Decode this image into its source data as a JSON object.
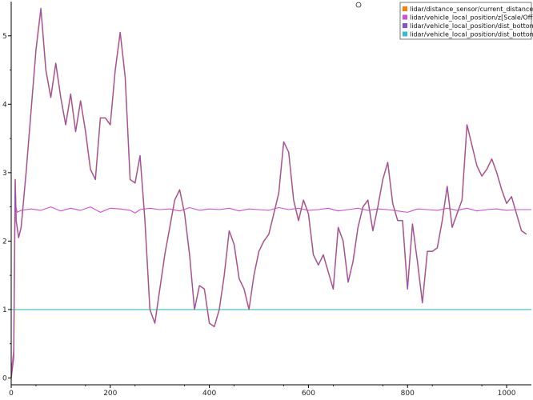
{
  "chart_data": {
    "type": "line",
    "title": "",
    "xlabel": "",
    "ylabel": "",
    "xlim": [
      0,
      1050
    ],
    "ylim": [
      -0.1,
      5.5
    ],
    "x_ticks": [
      0,
      200,
      400,
      600,
      800,
      1000
    ],
    "y_ticks": [
      0,
      1,
      2,
      3,
      4,
      5
    ],
    "grid": false,
    "legend_position": "top-right",
    "series": [
      {
        "name": "lidar/distance_sensor/current_distance",
        "color": "#ff8000",
        "points": [
          [
            0,
            0.0
          ],
          [
            5,
            0.3
          ],
          [
            8,
            2.9
          ],
          [
            10,
            2.3
          ],
          [
            15,
            2.05
          ],
          [
            20,
            2.2
          ],
          [
            30,
            3.0
          ],
          [
            40,
            3.9
          ],
          [
            50,
            4.8
          ],
          [
            60,
            5.4
          ],
          [
            70,
            4.5
          ],
          [
            80,
            4.1
          ],
          [
            90,
            4.6
          ],
          [
            100,
            4.1
          ],
          [
            110,
            3.7
          ],
          [
            120,
            4.15
          ],
          [
            130,
            3.6
          ],
          [
            140,
            4.05
          ],
          [
            150,
            3.6
          ],
          [
            160,
            3.05
          ],
          [
            170,
            2.9
          ],
          [
            180,
            3.8
          ],
          [
            190,
            3.8
          ],
          [
            200,
            3.7
          ],
          [
            210,
            4.5
          ],
          [
            220,
            5.05
          ],
          [
            230,
            4.4
          ],
          [
            240,
            2.9
          ],
          [
            250,
            2.85
          ],
          [
            260,
            3.25
          ],
          [
            270,
            2.3
          ],
          [
            280,
            1.0
          ],
          [
            290,
            0.8
          ],
          [
            300,
            1.3
          ],
          [
            310,
            1.8
          ],
          [
            320,
            2.2
          ],
          [
            330,
            2.6
          ],
          [
            340,
            2.75
          ],
          [
            350,
            2.4
          ],
          [
            360,
            1.8
          ],
          [
            370,
            1.0
          ],
          [
            380,
            1.35
          ],
          [
            390,
            1.3
          ],
          [
            400,
            0.8
          ],
          [
            410,
            0.75
          ],
          [
            420,
            1.0
          ],
          [
            430,
            1.5
          ],
          [
            440,
            2.15
          ],
          [
            450,
            1.95
          ],
          [
            460,
            1.45
          ],
          [
            470,
            1.3
          ],
          [
            480,
            1.0
          ],
          [
            490,
            1.5
          ],
          [
            500,
            1.85
          ],
          [
            510,
            2.0
          ],
          [
            520,
            2.1
          ],
          [
            530,
            2.4
          ],
          [
            540,
            2.7
          ],
          [
            550,
            3.45
          ],
          [
            560,
            3.3
          ],
          [
            570,
            2.6
          ],
          [
            580,
            2.3
          ],
          [
            590,
            2.6
          ],
          [
            600,
            2.4
          ],
          [
            610,
            1.8
          ],
          [
            620,
            1.65
          ],
          [
            630,
            1.8
          ],
          [
            640,
            1.55
          ],
          [
            650,
            1.3
          ],
          [
            660,
            2.2
          ],
          [
            670,
            2.0
          ],
          [
            680,
            1.4
          ],
          [
            690,
            1.7
          ],
          [
            700,
            2.2
          ],
          [
            710,
            2.5
          ],
          [
            720,
            2.6
          ],
          [
            730,
            2.15
          ],
          [
            740,
            2.5
          ],
          [
            750,
            2.9
          ],
          [
            760,
            3.15
          ],
          [
            770,
            2.55
          ],
          [
            780,
            2.3
          ],
          [
            790,
            2.3
          ],
          [
            800,
            1.3
          ],
          [
            810,
            2.25
          ],
          [
            820,
            1.7
          ],
          [
            830,
            1.1
          ],
          [
            840,
            1.85
          ],
          [
            850,
            1.85
          ],
          [
            860,
            1.9
          ],
          [
            870,
            2.3
          ],
          [
            880,
            2.8
          ],
          [
            890,
            2.2
          ],
          [
            900,
            2.4
          ],
          [
            910,
            2.6
          ],
          [
            920,
            3.7
          ],
          [
            930,
            3.4
          ],
          [
            940,
            3.1
          ],
          [
            950,
            2.95
          ],
          [
            960,
            3.05
          ],
          [
            970,
            3.2
          ],
          [
            980,
            3.0
          ],
          [
            990,
            2.75
          ],
          [
            1000,
            2.55
          ],
          [
            1010,
            2.65
          ],
          [
            1020,
            2.4
          ],
          [
            1030,
            2.15
          ],
          [
            1040,
            2.1
          ]
        ]
      },
      {
        "name": "lidar/vehicle_local_position/z[Scale/Offset]",
        "color": "#d14fd1",
        "points": [
          [
            0,
            0.1
          ],
          [
            5,
            0.4
          ],
          [
            8,
            2.55
          ],
          [
            12,
            2.42
          ],
          [
            20,
            2.45
          ],
          [
            40,
            2.47
          ],
          [
            60,
            2.45
          ],
          [
            80,
            2.5
          ],
          [
            100,
            2.44
          ],
          [
            120,
            2.48
          ],
          [
            140,
            2.45
          ],
          [
            160,
            2.5
          ],
          [
            180,
            2.42
          ],
          [
            200,
            2.48
          ],
          [
            220,
            2.47
          ],
          [
            240,
            2.45
          ],
          [
            250,
            2.41
          ],
          [
            260,
            2.46
          ],
          [
            280,
            2.48
          ],
          [
            300,
            2.46
          ],
          [
            320,
            2.47
          ],
          [
            340,
            2.44
          ],
          [
            360,
            2.49
          ],
          [
            380,
            2.45
          ],
          [
            400,
            2.47
          ],
          [
            420,
            2.46
          ],
          [
            440,
            2.48
          ],
          [
            460,
            2.44
          ],
          [
            480,
            2.47
          ],
          [
            500,
            2.46
          ],
          [
            520,
            2.45
          ],
          [
            540,
            2.49
          ],
          [
            560,
            2.46
          ],
          [
            580,
            2.48
          ],
          [
            600,
            2.45
          ],
          [
            620,
            2.46
          ],
          [
            640,
            2.48
          ],
          [
            660,
            2.44
          ],
          [
            680,
            2.46
          ],
          [
            700,
            2.48
          ],
          [
            720,
            2.45
          ],
          [
            740,
            2.47
          ],
          [
            760,
            2.46
          ],
          [
            780,
            2.44
          ],
          [
            800,
            2.42
          ],
          [
            820,
            2.47
          ],
          [
            840,
            2.46
          ],
          [
            860,
            2.45
          ],
          [
            880,
            2.48
          ],
          [
            900,
            2.45
          ],
          [
            920,
            2.48
          ],
          [
            940,
            2.44
          ],
          [
            960,
            2.46
          ],
          [
            980,
            2.47
          ],
          [
            1000,
            2.45
          ],
          [
            1020,
            2.46
          ],
          [
            1040,
            2.46
          ],
          [
            1050,
            2.46
          ]
        ]
      },
      {
        "name": "lidar/vehicle_local_position/dist_bottom",
        "color": "#8a4fd1",
        "points": [
          [
            0,
            0.0
          ],
          [
            5,
            0.3
          ],
          [
            8,
            2.9
          ],
          [
            10,
            2.3
          ],
          [
            15,
            2.05
          ],
          [
            20,
            2.2
          ],
          [
            30,
            3.0
          ],
          [
            40,
            3.9
          ],
          [
            50,
            4.8
          ],
          [
            60,
            5.4
          ],
          [
            70,
            4.5
          ],
          [
            80,
            4.1
          ],
          [
            90,
            4.6
          ],
          [
            100,
            4.1
          ],
          [
            110,
            3.7
          ],
          [
            120,
            4.15
          ],
          [
            130,
            3.6
          ],
          [
            140,
            4.05
          ],
          [
            150,
            3.6
          ],
          [
            160,
            3.05
          ],
          [
            170,
            2.9
          ],
          [
            180,
            3.8
          ],
          [
            190,
            3.8
          ],
          [
            200,
            3.7
          ],
          [
            210,
            4.5
          ],
          [
            220,
            5.05
          ],
          [
            230,
            4.4
          ],
          [
            240,
            2.9
          ],
          [
            250,
            2.85
          ],
          [
            260,
            3.25
          ],
          [
            270,
            2.3
          ],
          [
            280,
            1.0
          ],
          [
            290,
            0.8
          ],
          [
            300,
            1.3
          ],
          [
            310,
            1.8
          ],
          [
            320,
            2.2
          ],
          [
            330,
            2.6
          ],
          [
            340,
            2.75
          ],
          [
            350,
            2.4
          ],
          [
            360,
            1.8
          ],
          [
            370,
            1.0
          ],
          [
            380,
            1.35
          ],
          [
            390,
            1.3
          ],
          [
            400,
            0.8
          ],
          [
            410,
            0.75
          ],
          [
            420,
            1.0
          ],
          [
            430,
            1.5
          ],
          [
            440,
            2.15
          ],
          [
            450,
            1.95
          ],
          [
            460,
            1.45
          ],
          [
            470,
            1.3
          ],
          [
            480,
            1.0
          ],
          [
            490,
            1.5
          ],
          [
            500,
            1.85
          ],
          [
            510,
            2.0
          ],
          [
            520,
            2.1
          ],
          [
            530,
            2.4
          ],
          [
            540,
            2.7
          ],
          [
            550,
            3.45
          ],
          [
            560,
            3.3
          ],
          [
            570,
            2.6
          ],
          [
            580,
            2.3
          ],
          [
            590,
            2.6
          ],
          [
            600,
            2.4
          ],
          [
            610,
            1.8
          ],
          [
            620,
            1.65
          ],
          [
            630,
            1.8
          ],
          [
            640,
            1.55
          ],
          [
            650,
            1.3
          ],
          [
            660,
            2.2
          ],
          [
            670,
            2.0
          ],
          [
            680,
            1.4
          ],
          [
            690,
            1.7
          ],
          [
            700,
            2.2
          ],
          [
            710,
            2.5
          ],
          [
            720,
            2.6
          ],
          [
            730,
            2.15
          ],
          [
            740,
            2.5
          ],
          [
            750,
            2.9
          ],
          [
            760,
            3.15
          ],
          [
            770,
            2.55
          ],
          [
            780,
            2.3
          ],
          [
            790,
            2.3
          ],
          [
            800,
            1.3
          ],
          [
            810,
            2.25
          ],
          [
            820,
            1.7
          ],
          [
            830,
            1.1
          ],
          [
            840,
            1.85
          ],
          [
            850,
            1.85
          ],
          [
            860,
            1.9
          ],
          [
            870,
            2.3
          ],
          [
            880,
            2.8
          ],
          [
            890,
            2.2
          ],
          [
            900,
            2.4
          ],
          [
            910,
            2.6
          ],
          [
            920,
            3.7
          ],
          [
            930,
            3.4
          ],
          [
            940,
            3.1
          ],
          [
            950,
            2.95
          ],
          [
            960,
            3.05
          ],
          [
            970,
            3.2
          ],
          [
            980,
            3.0
          ],
          [
            990,
            2.75
          ],
          [
            1000,
            2.55
          ],
          [
            1010,
            2.65
          ],
          [
            1020,
            2.4
          ],
          [
            1030,
            2.15
          ],
          [
            1040,
            2.1
          ]
        ]
      },
      {
        "name": "lidar/vehicle_local_position/dist_bottom_valid",
        "color": "#30c0c8",
        "points": [
          [
            0,
            1.0
          ],
          [
            1050,
            1.0
          ]
        ]
      }
    ]
  }
}
